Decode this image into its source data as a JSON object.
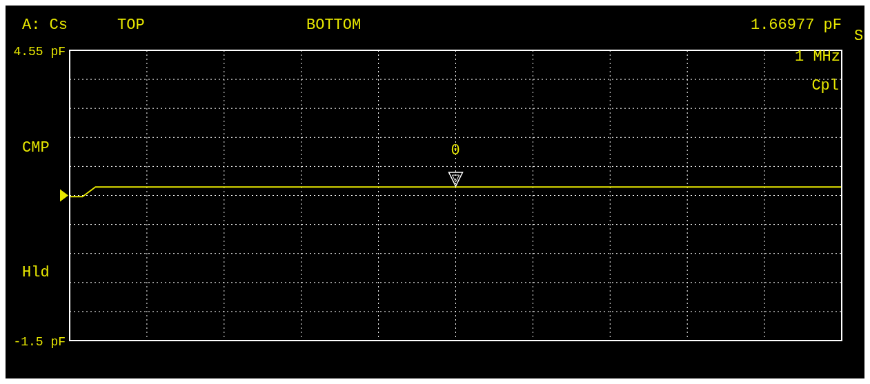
{
  "chart_data": {
    "type": "line",
    "title": "A: Cs",
    "annotations": [
      "TOP",
      "BOTTOM",
      "1.66977 pF",
      "S",
      "1 MHz",
      "Cpl",
      "CMP",
      "Hld",
      "0"
    ],
    "categories": [
      null,
      null,
      null,
      null,
      null,
      null,
      null,
      null,
      null,
      null,
      null,
      null,
      null,
      null,
      null,
      null,
      null,
      null,
      null,
      null,
      null,
      null,
      null,
      null,
      null,
      null,
      null,
      null,
      null,
      null,
      null,
      null,
      null,
      null,
      null,
      null,
      null,
      null,
      null,
      null,
      null,
      null,
      null,
      null,
      null,
      null,
      null,
      null,
      null,
      null,
      null,
      null,
      null,
      null,
      null,
      null,
      null,
      null,
      null,
      null,
      null
    ],
    "series": [
      {
        "color": "#e8e800",
        "values": [
          1.5,
          1.5,
          1.7,
          1.7,
          1.7,
          1.7,
          1.7,
          1.7,
          1.7,
          1.7,
          1.7,
          1.7,
          1.7,
          1.7,
          1.7,
          1.7,
          1.7,
          1.7,
          1.7,
          1.7,
          1.7,
          1.7,
          1.7,
          1.7,
          1.7,
          1.7,
          1.7,
          1.7,
          1.7,
          1.7,
          1.7,
          1.7,
          1.7,
          1.7,
          1.7,
          1.7,
          1.7,
          1.7,
          1.7,
          1.7,
          1.7,
          1.7,
          1.7,
          1.7,
          1.7,
          1.7,
          1.7,
          1.7,
          1.7,
          1.7,
          1.7,
          1.7,
          1.7,
          1.7,
          1.7,
          1.7,
          1.7,
          1.7,
          1.7,
          1.7,
          1.7
        ]
      }
    ],
    "ylim": [
      -1.5,
      4.55
    ],
    "yticks": [
      {
        "value": -1.5,
        "label": "-1.5 pF"
      },
      {
        "value": -0.895,
        "label": null
      },
      {
        "value": -0.29,
        "label": null
      },
      {
        "value": 0.315,
        "label": null
      },
      {
        "value": 0.92,
        "label": null
      },
      {
        "value": 1.525,
        "label": null
      },
      {
        "value": 2.13,
        "label": null
      },
      {
        "value": 2.735,
        "label": null
      },
      {
        "value": 3.34,
        "label": null
      },
      {
        "value": 3.945,
        "label": null
      },
      {
        "value": 4.55,
        "label": "4.55 pF"
      }
    ],
    "grid": true,
    "marker": "none",
    "line_style": "solid"
  }
}
